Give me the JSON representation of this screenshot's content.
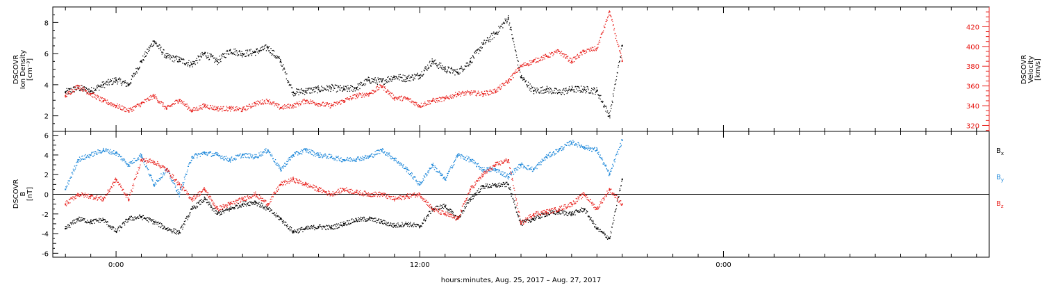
{
  "chart_data": [
    {
      "type": "scatter",
      "panel": "top",
      "ylabel_left": [
        "DSCOVR",
        "Ion Density",
        "[cm⁻³]"
      ],
      "ylabel_right": [
        "DSCOVR",
        "Velocity",
        "[km/s]"
      ],
      "ylim_left": [
        1,
        9
      ],
      "yticks_left": [
        "2",
        "4",
        "6",
        "8"
      ],
      "ylim_right": [
        314,
        440
      ],
      "yticks_right": [
        "320",
        "340",
        "360",
        "380",
        "400",
        "420"
      ],
      "colors": {
        "density": "#000000",
        "velocity": "#e8201c"
      },
      "series": [
        {
          "axis": "left",
          "color": "#000000",
          "x": [
            -2.0,
            -1.5,
            -1.0,
            -0.5,
            0.0,
            0.5,
            1.0,
            1.5,
            2.0,
            2.5,
            3.0,
            3.5,
            4.0,
            4.5,
            5.0,
            5.5,
            6.0,
            6.5,
            7.0,
            7.5,
            8.0,
            8.5,
            9.0,
            9.5,
            10.0,
            10.5,
            11.0,
            11.5,
            12.0,
            12.5,
            13.0,
            13.5,
            14.0,
            14.5,
            15.0,
            15.5,
            16.0,
            16.5,
            17.0,
            17.5,
            18.0,
            18.5,
            19.0,
            19.5,
            20.0
          ],
          "y": [
            3.5,
            3.8,
            3.6,
            4.0,
            4.3,
            4.0,
            5.5,
            6.8,
            5.8,
            5.6,
            5.3,
            6.0,
            5.5,
            6.2,
            6.0,
            6.1,
            6.4,
            5.5,
            3.5,
            3.6,
            3.7,
            3.8,
            3.7,
            3.8,
            4.3,
            4.2,
            4.5,
            4.4,
            4.6,
            5.5,
            5.0,
            4.8,
            5.5,
            6.6,
            7.3,
            8.3,
            4.5,
            3.6,
            3.7,
            3.5,
            3.7,
            3.7,
            3.6,
            2.0,
            6.5
          ]
        },
        {
          "axis": "right",
          "color": "#e8201c",
          "x": [
            -2.0,
            -1.5,
            -1.0,
            -0.5,
            0.0,
            0.5,
            1.0,
            1.5,
            2.0,
            2.5,
            3.0,
            3.5,
            4.0,
            4.5,
            5.0,
            5.5,
            6.0,
            6.5,
            7.0,
            7.5,
            8.0,
            8.5,
            9.0,
            9.5,
            10.0,
            10.5,
            11.0,
            11.5,
            12.0,
            12.5,
            13.0,
            13.5,
            14.0,
            14.5,
            15.0,
            15.5,
            16.0,
            16.5,
            17.0,
            17.5,
            18.0,
            18.5,
            19.0,
            19.5,
            20.0
          ],
          "y": [
            350,
            360,
            352,
            345,
            340,
            335,
            342,
            350,
            337,
            346,
            335,
            340,
            337,
            337,
            336,
            342,
            345,
            338,
            340,
            345,
            342,
            340,
            345,
            350,
            352,
            360,
            348,
            347,
            340,
            345,
            347,
            352,
            353,
            352,
            355,
            365,
            380,
            385,
            390,
            395,
            385,
            395,
            398,
            435,
            385
          ]
        }
      ]
    },
    {
      "type": "scatter",
      "panel": "bottom",
      "ylabel_left": [
        "DSCOVR",
        "B",
        "[nT]"
      ],
      "ylim": [
        -6.4,
        6.4
      ],
      "yticks": [
        "-6",
        "-4",
        "-2",
        "0",
        "2",
        "4",
        "6"
      ],
      "zero_line": true,
      "legend": [
        {
          "main": "B",
          "sub": "x",
          "color": "#000000"
        },
        {
          "main": "B",
          "sub": "y",
          "color": "#1a86d9"
        },
        {
          "main": "B",
          "sub": "z",
          "color": "#e8201c"
        }
      ],
      "series": [
        {
          "name": "Bx",
          "color": "#000000",
          "x": [
            -2.0,
            -1.5,
            -1.0,
            -0.5,
            0.0,
            0.5,
            1.0,
            1.5,
            2.0,
            2.5,
            3.0,
            3.5,
            4.0,
            4.5,
            5.0,
            5.5,
            6.0,
            6.5,
            7.0,
            7.5,
            8.0,
            8.5,
            9.0,
            9.5,
            10.0,
            10.5,
            11.0,
            11.5,
            12.0,
            12.5,
            13.0,
            13.5,
            14.0,
            14.5,
            15.0,
            15.5,
            16.0,
            16.5,
            17.0,
            17.5,
            18.0,
            18.5,
            19.0,
            19.5,
            20.0
          ],
          "y": [
            -3.5,
            -2.5,
            -2.8,
            -2.6,
            -3.8,
            -2.5,
            -2.3,
            -2.8,
            -3.5,
            -3.9,
            -1.5,
            -0.5,
            -2.0,
            -1.5,
            -1.0,
            -0.8,
            -1.5,
            -2.5,
            -3.8,
            -3.5,
            -3.3,
            -3.4,
            -3.0,
            -2.6,
            -2.5,
            -2.8,
            -3.2,
            -3.0,
            -3.3,
            -1.5,
            -1.2,
            -2.5,
            -0.5,
            0.8,
            0.9,
            1.0,
            -3.0,
            -2.5,
            -2.0,
            -1.8,
            -2.0,
            -1.5,
            -3.5,
            -4.5,
            1.5
          ]
        },
        {
          "name": "By",
          "color": "#1a86d9",
          "x": [
            -2.0,
            -1.5,
            -1.0,
            -0.5,
            0.0,
            0.5,
            1.0,
            1.5,
            2.0,
            2.5,
            3.0,
            3.5,
            4.0,
            4.5,
            5.0,
            5.5,
            6.0,
            6.5,
            7.0,
            7.5,
            8.0,
            8.5,
            9.0,
            9.5,
            10.0,
            10.5,
            11.0,
            11.5,
            12.0,
            12.5,
            13.0,
            13.5,
            14.0,
            14.5,
            15.0,
            15.5,
            16.0,
            16.5,
            17.0,
            17.5,
            18.0,
            18.5,
            19.0,
            19.5,
            20.0
          ],
          "y": [
            0.5,
            3.5,
            4.0,
            4.5,
            4.2,
            3.0,
            4.0,
            1.0,
            2.5,
            0.0,
            3.8,
            4.2,
            4.0,
            3.5,
            4.0,
            3.8,
            4.5,
            2.5,
            4.0,
            4.5,
            4.0,
            3.8,
            3.5,
            3.6,
            3.8,
            4.5,
            3.6,
            2.5,
            1.0,
            3.0,
            1.5,
            4.0,
            3.5,
            2.5,
            2.5,
            1.8,
            3.0,
            2.5,
            3.8,
            4.5,
            5.3,
            4.8,
            4.5,
            2.0,
            5.5
          ]
        },
        {
          "name": "Bz",
          "color": "#e8201c",
          "x": [
            -2.0,
            -1.5,
            -1.0,
            -0.5,
            0.0,
            0.5,
            1.0,
            1.5,
            2.0,
            2.5,
            3.0,
            3.5,
            4.0,
            4.5,
            5.0,
            5.5,
            6.0,
            6.5,
            7.0,
            7.5,
            8.0,
            8.5,
            9.0,
            9.5,
            10.0,
            10.5,
            11.0,
            11.5,
            12.0,
            12.5,
            13.0,
            13.5,
            14.0,
            14.5,
            15.0,
            15.5,
            16.0,
            16.5,
            17.0,
            17.5,
            18.0,
            18.5,
            19.0,
            19.5,
            20.0
          ],
          "y": [
            -1.0,
            0.0,
            -0.2,
            -0.5,
            1.5,
            -0.5,
            3.5,
            3.3,
            2.5,
            1.0,
            -0.5,
            0.5,
            -1.5,
            -1.0,
            -0.5,
            0.0,
            -1.0,
            1.0,
            1.5,
            1.0,
            0.5,
            0.0,
            0.5,
            0.2,
            0.0,
            0.0,
            -0.5,
            -0.2,
            0.0,
            -1.5,
            -2.0,
            -2.5,
            0.5,
            2.0,
            3.0,
            3.5,
            -3.0,
            -2.0,
            -1.8,
            -1.5,
            -1.0,
            0.0,
            -1.5,
            0.5,
            -1.0
          ]
        }
      ]
    }
  ],
  "x_axis": {
    "xlim": [
      -2.5,
      34.5
    ],
    "tick_labels": [
      {
        "x": 0,
        "label": "0:00"
      },
      {
        "x": 12,
        "label": "12:00"
      },
      {
        "x": 24,
        "label": "0:00"
      }
    ],
    "xlabel": "hours:minutes, Aug. 25, 2017 – Aug. 27, 2017"
  }
}
